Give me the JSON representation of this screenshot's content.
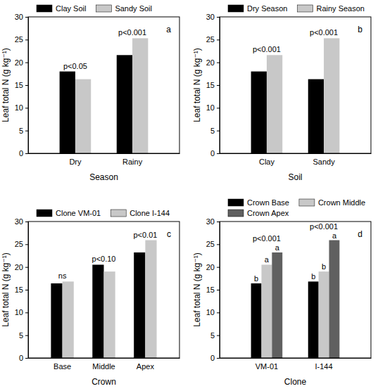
{
  "chart_data": [
    {
      "type": "bar",
      "title": "a",
      "x_label": "Season",
      "y_label": "Leaf total N (g kg⁻¹)",
      "categories": [
        "Dry",
        "Rainy"
      ],
      "series": [
        {
          "name": "Clay Soil",
          "color": "#000000",
          "values": [
            18.0,
            21.6
          ]
        },
        {
          "name": "Sandy Soil",
          "color": "#c8c8c8",
          "values": [
            16.3,
            25.3
          ]
        }
      ],
      "annotations": [
        {
          "text": "p<0.05",
          "category": "Dry"
        },
        {
          "text": "p<0.001",
          "category": "Rainy"
        }
      ],
      "ylim": [
        0,
        30
      ],
      "yticks": [
        0,
        5,
        10,
        15,
        20,
        25,
        30
      ],
      "grid": false,
      "legend": "top"
    },
    {
      "type": "bar",
      "title": "b",
      "x_label": "Soil",
      "y_label": "Leaf total N (g kg⁻¹)",
      "categories": [
        "Clay",
        "Sandy"
      ],
      "series": [
        {
          "name": "Dry Season",
          "color": "#000000",
          "values": [
            18.0,
            16.3
          ]
        },
        {
          "name": "Rainy Season",
          "color": "#c8c8c8",
          "values": [
            21.6,
            25.3
          ]
        }
      ],
      "annotations": [
        {
          "text": "p<0.001",
          "category": "Clay"
        },
        {
          "text": "p<0.001",
          "category": "Sandy"
        }
      ],
      "ylim": [
        0,
        30
      ],
      "yticks": [
        0,
        5,
        10,
        15,
        20,
        25,
        30
      ],
      "grid": false,
      "legend": "top"
    },
    {
      "type": "bar",
      "title": "c",
      "x_label": "Crown",
      "y_label": "Leaf total N (g kg⁻¹)",
      "categories": [
        "Base",
        "Middle",
        "Apex"
      ],
      "series": [
        {
          "name": "Clone VM-01",
          "color": "#000000",
          "values": [
            16.4,
            20.5,
            23.2
          ]
        },
        {
          "name": "Clone I-144",
          "color": "#c8c8c8",
          "values": [
            16.8,
            19.0,
            25.9
          ]
        }
      ],
      "annotations": [
        {
          "text": "ns",
          "category": "Base"
        },
        {
          "text": "p<0.10",
          "category": "Middle"
        },
        {
          "text": "p<0.01",
          "category": "Apex"
        }
      ],
      "ylim": [
        0,
        30
      ],
      "yticks": [
        0,
        5,
        10,
        15,
        20,
        25,
        30
      ],
      "grid": false,
      "legend": "top"
    },
    {
      "type": "bar",
      "title": "d",
      "x_label": "Clone",
      "y_label": "Leaf total N (g kg⁻¹)",
      "categories": [
        "VM-01",
        "I-144"
      ],
      "series": [
        {
          "name": "Crown Base",
          "color": "#000000",
          "values": [
            16.4,
            16.8
          ]
        },
        {
          "name": "Crown Middle",
          "color": "#c8c8c8",
          "values": [
            20.5,
            19.0
          ]
        },
        {
          "name": "Crown Apex",
          "color": "#606060",
          "values": [
            23.2,
            25.9
          ]
        }
      ],
      "annotations": [
        {
          "text": "p<0.001",
          "category": "VM-01"
        },
        {
          "text": "p<0.001",
          "category": "I-144"
        },
        {
          "text": "b",
          "category": "VM-01",
          "series": "Crown Base"
        },
        {
          "text": "a",
          "category": "VM-01",
          "series": "Crown Middle"
        },
        {
          "text": "a",
          "category": "VM-01",
          "series": "Crown Apex"
        },
        {
          "text": "b",
          "category": "I-144",
          "series": "Crown Base"
        },
        {
          "text": "b",
          "category": "I-144",
          "series": "Crown Middle"
        },
        {
          "text": "a",
          "category": "I-144",
          "series": "Crown Apex"
        }
      ],
      "ylim": [
        0,
        30
      ],
      "yticks": [
        0,
        5,
        10,
        15,
        20,
        25,
        30
      ],
      "grid": false,
      "legend": "top"
    }
  ]
}
